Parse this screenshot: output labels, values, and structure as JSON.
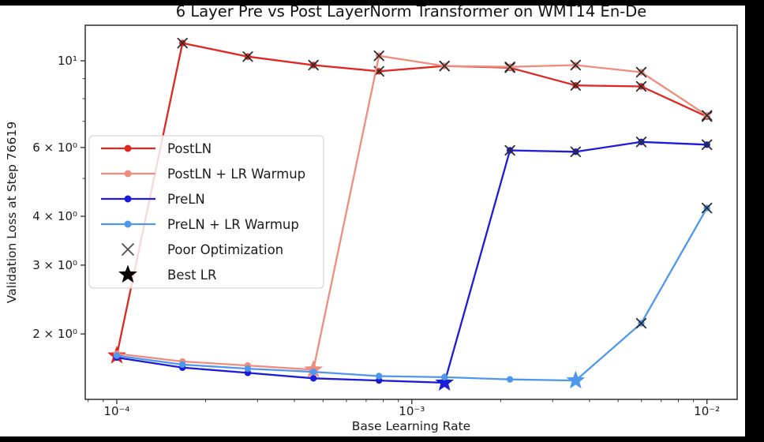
{
  "frame": {
    "figure_bg": "#ffffff",
    "border_color": "#000000",
    "spine_color": "#3a3a3a",
    "tick_label_color": "#1c1c1c",
    "poor_marker_color": "#2d2d2d",
    "best_marker_legend_color": "#000000"
  },
  "chart_data": {
    "type": "line",
    "title": "6 Layer Pre vs Post LayerNorm Transformer on WMT14 En-De",
    "xlabel": "Base Learning Rate",
    "ylabel": "Validation Loss at Step 76619",
    "x_scale": "log",
    "y_scale": "log",
    "xlim": [
      7.82e-05,
      0.01266
    ],
    "ylim": [
      1.36,
      12.33
    ],
    "grid": false,
    "x_ticks": [
      {
        "v": 0.0001,
        "label": "10⁻⁴"
      },
      {
        "v": 0.001,
        "label": "10⁻³"
      },
      {
        "v": 0.01,
        "label": "10⁻²"
      }
    ],
    "y_ticks": [
      {
        "v": 10,
        "label": "10¹"
      },
      {
        "v": 6,
        "label": "6 × 10⁰"
      },
      {
        "v": 4,
        "label": "4 × 10⁰"
      },
      {
        "v": 3,
        "label": "3 × 10⁰"
      },
      {
        "v": 2,
        "label": "2 × 10⁰"
      }
    ],
    "y_minor_unlabeled": [
      5,
      7,
      8,
      9
    ],
    "x": [
      0.0001,
      0.000167,
      0.000278,
      0.000464,
      0.000774,
      0.00129,
      0.00215,
      0.00359,
      0.00599,
      0.01
    ],
    "series": [
      {
        "name": "PostLN",
        "color": "#e02622",
        "values": [
          1.76,
          11.1,
          10.25,
          9.75,
          9.4,
          9.7,
          9.6,
          8.65,
          8.6,
          7.2
        ],
        "poor": [
          false,
          true,
          true,
          true,
          true,
          true,
          true,
          true,
          true,
          true
        ],
        "best_index": 0,
        "best_lr": 0.0001
      },
      {
        "name": "PostLN + LR Warmup",
        "color": "#ee8d7e",
        "values": [
          1.78,
          1.7,
          1.66,
          1.62,
          10.3,
          9.7,
          9.65,
          9.75,
          9.35,
          7.25
        ],
        "poor": [
          false,
          false,
          false,
          false,
          true,
          true,
          true,
          true,
          true,
          true
        ],
        "best_index": 3,
        "best_lr": 0.000464
      },
      {
        "name": "PreLN",
        "color": "#1b1bd8",
        "values": [
          1.74,
          1.64,
          1.59,
          1.54,
          1.52,
          1.5,
          5.9,
          5.85,
          6.2,
          6.1
        ],
        "poor": [
          false,
          false,
          false,
          false,
          false,
          false,
          true,
          true,
          true,
          true
        ],
        "best_index": 5,
        "best_lr": 0.00129
      },
      {
        "name": "PreLN + LR Warmup",
        "color": "#4f97ee",
        "values": [
          1.76,
          1.67,
          1.63,
          1.6,
          1.56,
          1.55,
          1.53,
          1.52,
          2.13,
          4.2
        ],
        "poor": [
          false,
          false,
          false,
          false,
          false,
          false,
          false,
          false,
          true,
          true
        ],
        "best_index": 7,
        "best_lr": 0.00359
      }
    ],
    "legend": {
      "position": "center left",
      "marker_entries": [
        {
          "label": "Poor Optimization",
          "marker": "x"
        },
        {
          "label": "Best LR",
          "marker": "star"
        }
      ]
    }
  }
}
